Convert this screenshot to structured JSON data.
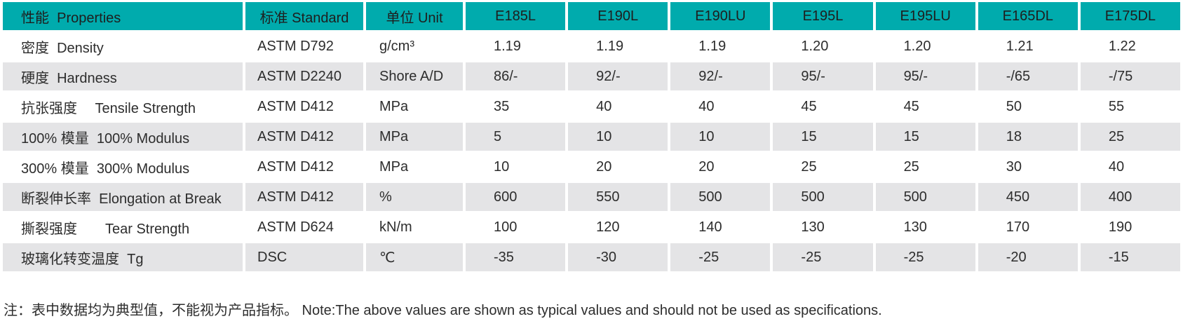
{
  "table": {
    "columns": [
      "性能  Properties",
      "标准 Standard",
      "单位 Unit",
      "E185L",
      "E190L",
      "E190LU",
      "E195L",
      "E195LU",
      "E165DL",
      "E175DL"
    ],
    "rows": [
      {
        "property": "密度  Density",
        "standard": "ASTM D792",
        "unit": "g/cm³",
        "values": [
          "1.19",
          "1.19",
          "1.19",
          "1.20",
          "1.20",
          "1.21",
          "1.22"
        ]
      },
      {
        "property": "硬度  Hardness",
        "standard": "ASTM D2240",
        "unit": "Shore A/D",
        "values": [
          "86/-",
          "92/-",
          "92/-",
          "95/-",
          "95/-",
          "-/65",
          "-/75"
        ]
      },
      {
        "property": "抗张强度　 Tensile Strength",
        "standard": "ASTM D412",
        "unit": "MPa",
        "values": [
          "35",
          "40",
          "40",
          "45",
          "45",
          "50",
          "55"
        ]
      },
      {
        "property": "100% 模量  100% Modulus",
        "standard": "ASTM D412",
        "unit": "MPa",
        "values": [
          "5",
          "10",
          "10",
          "15",
          "15",
          "18",
          "25"
        ]
      },
      {
        "property": "300% 模量  300% Modulus",
        "standard": "ASTM D412",
        "unit": "MPa",
        "values": [
          "10",
          "20",
          "20",
          "25",
          "25",
          "30",
          "40"
        ]
      },
      {
        "property": "断裂伸长率  Elongation at Break",
        "standard": "ASTM D412",
        "unit": "%",
        "values": [
          "600",
          "550",
          "500",
          "500",
          "500",
          "450",
          "400"
        ]
      },
      {
        "property": "撕裂强度　　Tear Strength",
        "standard": "ASTM D624",
        "unit": "kN/m",
        "values": [
          "100",
          "120",
          "140",
          "130",
          "130",
          "170",
          "190"
        ]
      },
      {
        "property": "玻璃化转变温度  Tg",
        "standard": "DSC",
        "unit": "℃",
        "values": [
          "-35",
          "-30",
          "-25",
          "-25",
          "-25",
          "-20",
          "-15"
        ]
      }
    ]
  },
  "note": "注：表中数据均为典型值，不能视为产品指标。 Note:The above values are shown as typical values and should not be used as specifications.",
  "colors": {
    "header_bg": "#00abad",
    "alt_row_bg": "#e4e4e6",
    "text": "#2d2d2d"
  }
}
